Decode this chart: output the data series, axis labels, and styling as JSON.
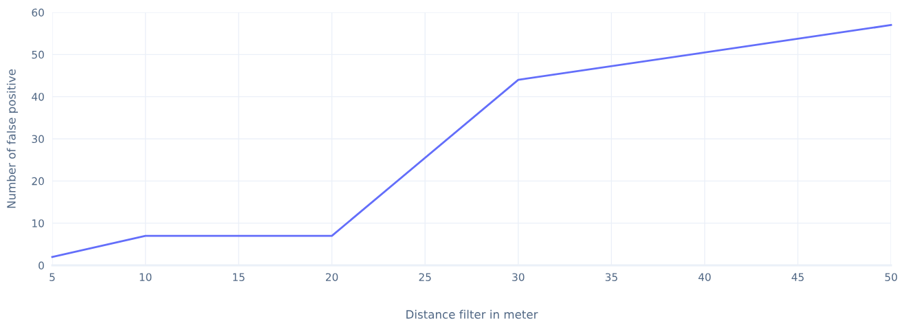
{
  "chart_data": {
    "type": "line",
    "xlabel": "Distance filter in meter",
    "ylabel": "Number of false positive",
    "x": [
      5,
      10,
      20,
      30,
      50
    ],
    "series": [
      {
        "color": "#636efa",
        "values": [
          2,
          7,
          7,
          44,
          57
        ]
      }
    ],
    "xlim": [
      5,
      50
    ],
    "xticks": [
      5,
      10,
      15,
      20,
      25,
      30,
      35,
      40,
      45,
      50
    ],
    "ylim": [
      0,
      60
    ],
    "yticks": [
      0,
      10,
      20,
      30,
      40,
      50,
      60
    ],
    "grid": true,
    "line_style": "solid"
  }
}
